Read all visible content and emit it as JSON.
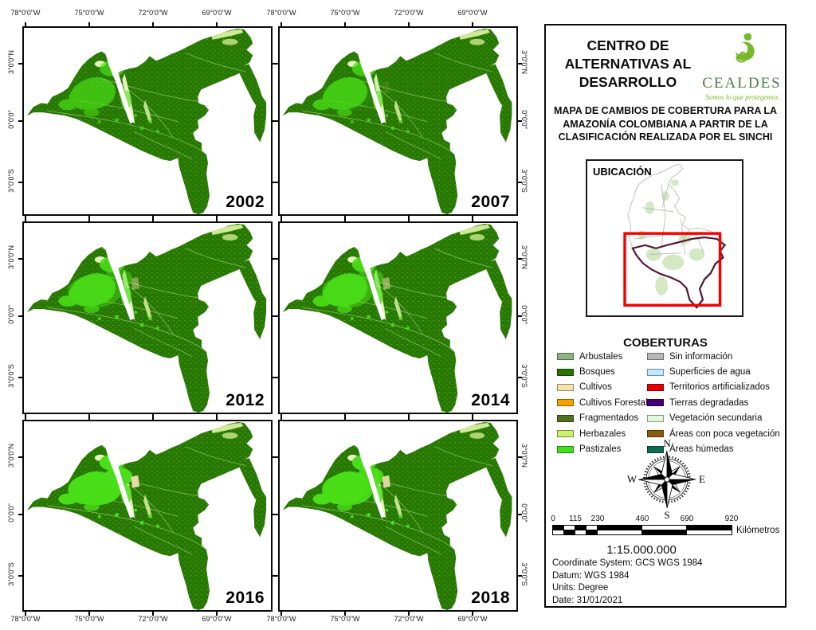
{
  "header": {
    "org_title": "CENTRO DE ALTERNATIVAS AL DESARROLLO",
    "logo": {
      "text": "CEALDES",
      "tagline": "Somos lo que protegemos"
    },
    "map_title": "MAPA DE CAMBIOS DE COBERTURA PARA LA AMAZONÍA COLOMBIANA A PARTIR DE LA CLASIFICACIÓN REALIZADA POR EL SINCHI"
  },
  "location_inset": {
    "title": "UBICACIÓN"
  },
  "legend": {
    "title": "COBERTURAS",
    "columns": [
      [
        {
          "label": "Arbustales",
          "color": "#8CB47E"
        },
        {
          "label": "Bosques",
          "color": "#267300"
        },
        {
          "label": "Cultivos",
          "color": "#F7E3AC"
        },
        {
          "label": "Cultivos Forestales",
          "color": "#F5A200"
        },
        {
          "label": "Fragmentados",
          "color": "#4F701E"
        },
        {
          "label": "Herbazales",
          "color": "#CCF066"
        },
        {
          "label": "Pastizales",
          "color": "#42E01C"
        }
      ],
      [
        {
          "label": "Sin información",
          "color": "#B7B7B7"
        },
        {
          "label": "Superficies de agua",
          "color": "#BEE8FF"
        },
        {
          "label": "Territorios artificializados",
          "color": "#E60000"
        },
        {
          "label": "Tierras degradadas",
          "color": "#430070"
        },
        {
          "label": "Vegetación secundaria",
          "color": "#DFF7DA"
        },
        {
          "label": "Áreas con poca vegetación",
          "color": "#8A5A0F"
        },
        {
          "label": "Áreas húmedas",
          "color": "#0E6B52"
        }
      ]
    ]
  },
  "compass": {
    "n": "N",
    "s": "S",
    "e": "E",
    "w": "W"
  },
  "scalebar": {
    "tick_labels": [
      "0",
      "115",
      "230",
      "460",
      "690",
      "920"
    ],
    "unit": "Kilómetros",
    "ratio_text": "1:15.000.000"
  },
  "metadata": {
    "lines": [
      "Coordinate System: GCS WGS 1984",
      "Datum: WGS 1984",
      "Units: Degree",
      "Date: 31/01/2021"
    ]
  },
  "map_panels": {
    "years": [
      "2002",
      "2007",
      "2012",
      "2014",
      "2016",
      "2018"
    ],
    "lon_labels": [
      "78°0'0\"W",
      "75°0'0\"W",
      "72°0'0\"W",
      "69°0'0\"W"
    ],
    "lat_labels": [
      "3°0'0\"N",
      "0°0'0\"",
      "3°0'0\"S"
    ]
  },
  "colors": {
    "map_base": "#267800",
    "map_bright": "#4ADE18",
    "map_pale": "#DCF0A5",
    "accent_red": "#F00000",
    "amazon_outline": "#571435",
    "logo_green": "#76B82A"
  }
}
